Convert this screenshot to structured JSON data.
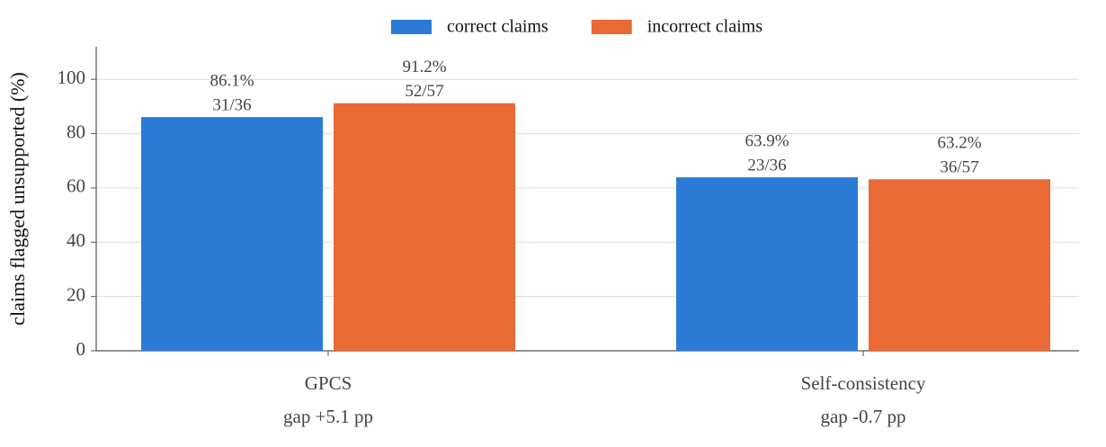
{
  "chart_data": {
    "type": "bar",
    "categories": [
      "GPCS",
      "Self-consistency"
    ],
    "category_sublabels": [
      "gap +5.1 pp",
      "gap -0.7 pp"
    ],
    "ylabel": "claims flagged unsupported (%)",
    "series": [
      {
        "name": "correct claims",
        "color": "#2b7bd6",
        "values": [
          86.1,
          63.9
        ],
        "value_labels": [
          "86.1%",
          "63.9%"
        ],
        "count_labels": [
          "31/36",
          "23/36"
        ]
      },
      {
        "name": "incorrect claims",
        "color": "#e96a35",
        "values": [
          91.2,
          63.2
        ],
        "value_labels": [
          "91.2%",
          "63.2%"
        ],
        "count_labels": [
          "52/57",
          "36/57"
        ]
      }
    ],
    "ylim": [
      0,
      112
    ],
    "yticks": [
      0,
      20,
      40,
      60,
      80,
      100
    ],
    "grid": true,
    "legend": "top"
  }
}
